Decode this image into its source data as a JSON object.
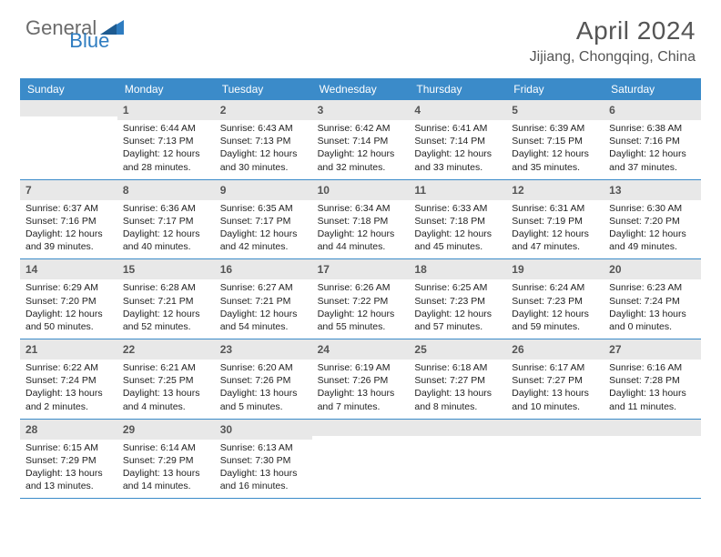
{
  "brand": {
    "general": "General",
    "blue": "Blue"
  },
  "title": "April 2024",
  "location": "Jijiang, Chongqing, China",
  "colors": {
    "header_bg": "#3b8bc9",
    "daynum_bg": "#e8e8e8",
    "rule": "#3b8bc9",
    "text_muted": "#555555",
    "text_body": "#222222",
    "logo_general": "#6b6b6b",
    "logo_blue": "#2e7cc0",
    "background": "#ffffff"
  },
  "typography": {
    "title_fontsize": 28,
    "location_fontsize": 16,
    "weekday_fontsize": 12,
    "daynum_fontsize": 12,
    "body_fontsize": 10.5
  },
  "weekdays": [
    "Sunday",
    "Monday",
    "Tuesday",
    "Wednesday",
    "Thursday",
    "Friday",
    "Saturday"
  ],
  "weeks": [
    [
      null,
      {
        "d": "1",
        "sr": "Sunrise: 6:44 AM",
        "ss": "Sunset: 7:13 PM",
        "dl1": "Daylight: 12 hours",
        "dl2": "and 28 minutes."
      },
      {
        "d": "2",
        "sr": "Sunrise: 6:43 AM",
        "ss": "Sunset: 7:13 PM",
        "dl1": "Daylight: 12 hours",
        "dl2": "and 30 minutes."
      },
      {
        "d": "3",
        "sr": "Sunrise: 6:42 AM",
        "ss": "Sunset: 7:14 PM",
        "dl1": "Daylight: 12 hours",
        "dl2": "and 32 minutes."
      },
      {
        "d": "4",
        "sr": "Sunrise: 6:41 AM",
        "ss": "Sunset: 7:14 PM",
        "dl1": "Daylight: 12 hours",
        "dl2": "and 33 minutes."
      },
      {
        "d": "5",
        "sr": "Sunrise: 6:39 AM",
        "ss": "Sunset: 7:15 PM",
        "dl1": "Daylight: 12 hours",
        "dl2": "and 35 minutes."
      },
      {
        "d": "6",
        "sr": "Sunrise: 6:38 AM",
        "ss": "Sunset: 7:16 PM",
        "dl1": "Daylight: 12 hours",
        "dl2": "and 37 minutes."
      }
    ],
    [
      {
        "d": "7",
        "sr": "Sunrise: 6:37 AM",
        "ss": "Sunset: 7:16 PM",
        "dl1": "Daylight: 12 hours",
        "dl2": "and 39 minutes."
      },
      {
        "d": "8",
        "sr": "Sunrise: 6:36 AM",
        "ss": "Sunset: 7:17 PM",
        "dl1": "Daylight: 12 hours",
        "dl2": "and 40 minutes."
      },
      {
        "d": "9",
        "sr": "Sunrise: 6:35 AM",
        "ss": "Sunset: 7:17 PM",
        "dl1": "Daylight: 12 hours",
        "dl2": "and 42 minutes."
      },
      {
        "d": "10",
        "sr": "Sunrise: 6:34 AM",
        "ss": "Sunset: 7:18 PM",
        "dl1": "Daylight: 12 hours",
        "dl2": "and 44 minutes."
      },
      {
        "d": "11",
        "sr": "Sunrise: 6:33 AM",
        "ss": "Sunset: 7:18 PM",
        "dl1": "Daylight: 12 hours",
        "dl2": "and 45 minutes."
      },
      {
        "d": "12",
        "sr": "Sunrise: 6:31 AM",
        "ss": "Sunset: 7:19 PM",
        "dl1": "Daylight: 12 hours",
        "dl2": "and 47 minutes."
      },
      {
        "d": "13",
        "sr": "Sunrise: 6:30 AM",
        "ss": "Sunset: 7:20 PM",
        "dl1": "Daylight: 12 hours",
        "dl2": "and 49 minutes."
      }
    ],
    [
      {
        "d": "14",
        "sr": "Sunrise: 6:29 AM",
        "ss": "Sunset: 7:20 PM",
        "dl1": "Daylight: 12 hours",
        "dl2": "and 50 minutes."
      },
      {
        "d": "15",
        "sr": "Sunrise: 6:28 AM",
        "ss": "Sunset: 7:21 PM",
        "dl1": "Daylight: 12 hours",
        "dl2": "and 52 minutes."
      },
      {
        "d": "16",
        "sr": "Sunrise: 6:27 AM",
        "ss": "Sunset: 7:21 PM",
        "dl1": "Daylight: 12 hours",
        "dl2": "and 54 minutes."
      },
      {
        "d": "17",
        "sr": "Sunrise: 6:26 AM",
        "ss": "Sunset: 7:22 PM",
        "dl1": "Daylight: 12 hours",
        "dl2": "and 55 minutes."
      },
      {
        "d": "18",
        "sr": "Sunrise: 6:25 AM",
        "ss": "Sunset: 7:23 PM",
        "dl1": "Daylight: 12 hours",
        "dl2": "and 57 minutes."
      },
      {
        "d": "19",
        "sr": "Sunrise: 6:24 AM",
        "ss": "Sunset: 7:23 PM",
        "dl1": "Daylight: 12 hours",
        "dl2": "and 59 minutes."
      },
      {
        "d": "20",
        "sr": "Sunrise: 6:23 AM",
        "ss": "Sunset: 7:24 PM",
        "dl1": "Daylight: 13 hours",
        "dl2": "and 0 minutes."
      }
    ],
    [
      {
        "d": "21",
        "sr": "Sunrise: 6:22 AM",
        "ss": "Sunset: 7:24 PM",
        "dl1": "Daylight: 13 hours",
        "dl2": "and 2 minutes."
      },
      {
        "d": "22",
        "sr": "Sunrise: 6:21 AM",
        "ss": "Sunset: 7:25 PM",
        "dl1": "Daylight: 13 hours",
        "dl2": "and 4 minutes."
      },
      {
        "d": "23",
        "sr": "Sunrise: 6:20 AM",
        "ss": "Sunset: 7:26 PM",
        "dl1": "Daylight: 13 hours",
        "dl2": "and 5 minutes."
      },
      {
        "d": "24",
        "sr": "Sunrise: 6:19 AM",
        "ss": "Sunset: 7:26 PM",
        "dl1": "Daylight: 13 hours",
        "dl2": "and 7 minutes."
      },
      {
        "d": "25",
        "sr": "Sunrise: 6:18 AM",
        "ss": "Sunset: 7:27 PM",
        "dl1": "Daylight: 13 hours",
        "dl2": "and 8 minutes."
      },
      {
        "d": "26",
        "sr": "Sunrise: 6:17 AM",
        "ss": "Sunset: 7:27 PM",
        "dl1": "Daylight: 13 hours",
        "dl2": "and 10 minutes."
      },
      {
        "d": "27",
        "sr": "Sunrise: 6:16 AM",
        "ss": "Sunset: 7:28 PM",
        "dl1": "Daylight: 13 hours",
        "dl2": "and 11 minutes."
      }
    ],
    [
      {
        "d": "28",
        "sr": "Sunrise: 6:15 AM",
        "ss": "Sunset: 7:29 PM",
        "dl1": "Daylight: 13 hours",
        "dl2": "and 13 minutes."
      },
      {
        "d": "29",
        "sr": "Sunrise: 6:14 AM",
        "ss": "Sunset: 7:29 PM",
        "dl1": "Daylight: 13 hours",
        "dl2": "and 14 minutes."
      },
      {
        "d": "30",
        "sr": "Sunrise: 6:13 AM",
        "ss": "Sunset: 7:30 PM",
        "dl1": "Daylight: 13 hours",
        "dl2": "and 16 minutes."
      },
      null,
      null,
      null,
      null
    ]
  ]
}
